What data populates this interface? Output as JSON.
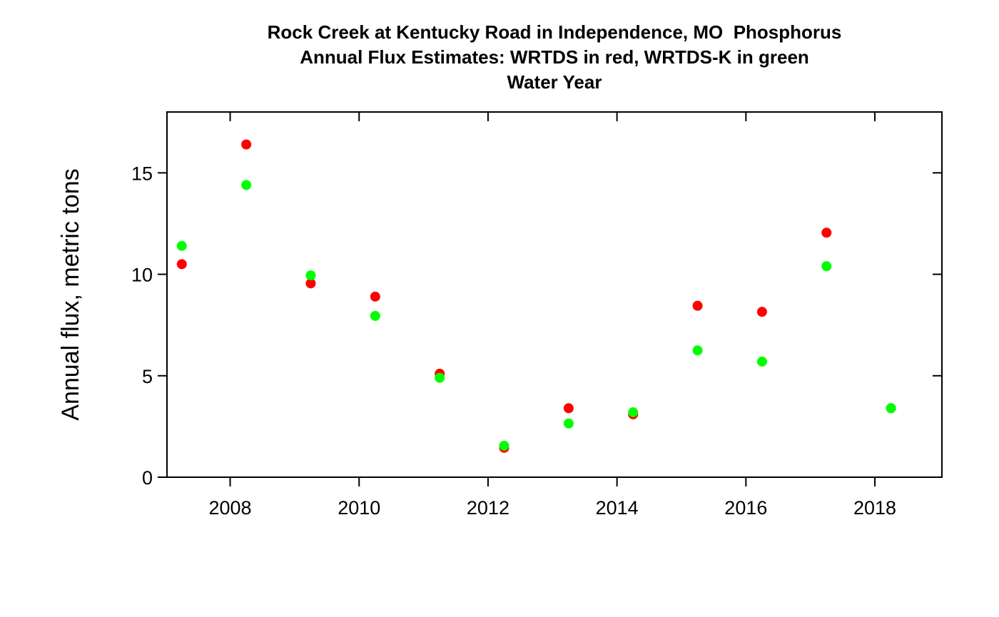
{
  "chart_data": {
    "type": "scatter",
    "title_lines": [
      "Rock Creek at Kentucky Road in Independence, MO  Phosphorus",
      "Annual Flux Estimates: WRTDS in red, WRTDS-K in green",
      "Water Year"
    ],
    "xlabel": "",
    "ylabel": "Annual flux, metric tons",
    "xlim": [
      2007.02,
      2019.04
    ],
    "ylim": [
      0,
      18
    ],
    "xticks": [
      2008,
      2010,
      2012,
      2014,
      2016,
      2018
    ],
    "yticks": [
      0,
      5,
      10,
      15
    ],
    "grid": false,
    "series": [
      {
        "color": "#ff0000",
        "x": [
          2007.25,
          2008.25,
          2009.25,
          2010.25,
          2011.25,
          2012.25,
          2013.25,
          2014.25,
          2015.25,
          2016.25,
          2017.25,
          2018.25
        ],
        "y": [
          10.5,
          16.4,
          9.55,
          8.9,
          5.1,
          1.45,
          3.4,
          3.1,
          8.45,
          8.15,
          12.05,
          3.4
        ]
      },
      {
        "color": "#00ff00",
        "x": [
          2007.25,
          2008.25,
          2009.25,
          2010.25,
          2011.25,
          2012.25,
          2013.25,
          2014.25,
          2015.25,
          2016.25,
          2017.25,
          2018.25
        ],
        "y": [
          11.4,
          14.4,
          9.95,
          7.95,
          4.9,
          1.55,
          2.65,
          3.2,
          6.25,
          5.7,
          10.4,
          3.4
        ]
      }
    ]
  }
}
